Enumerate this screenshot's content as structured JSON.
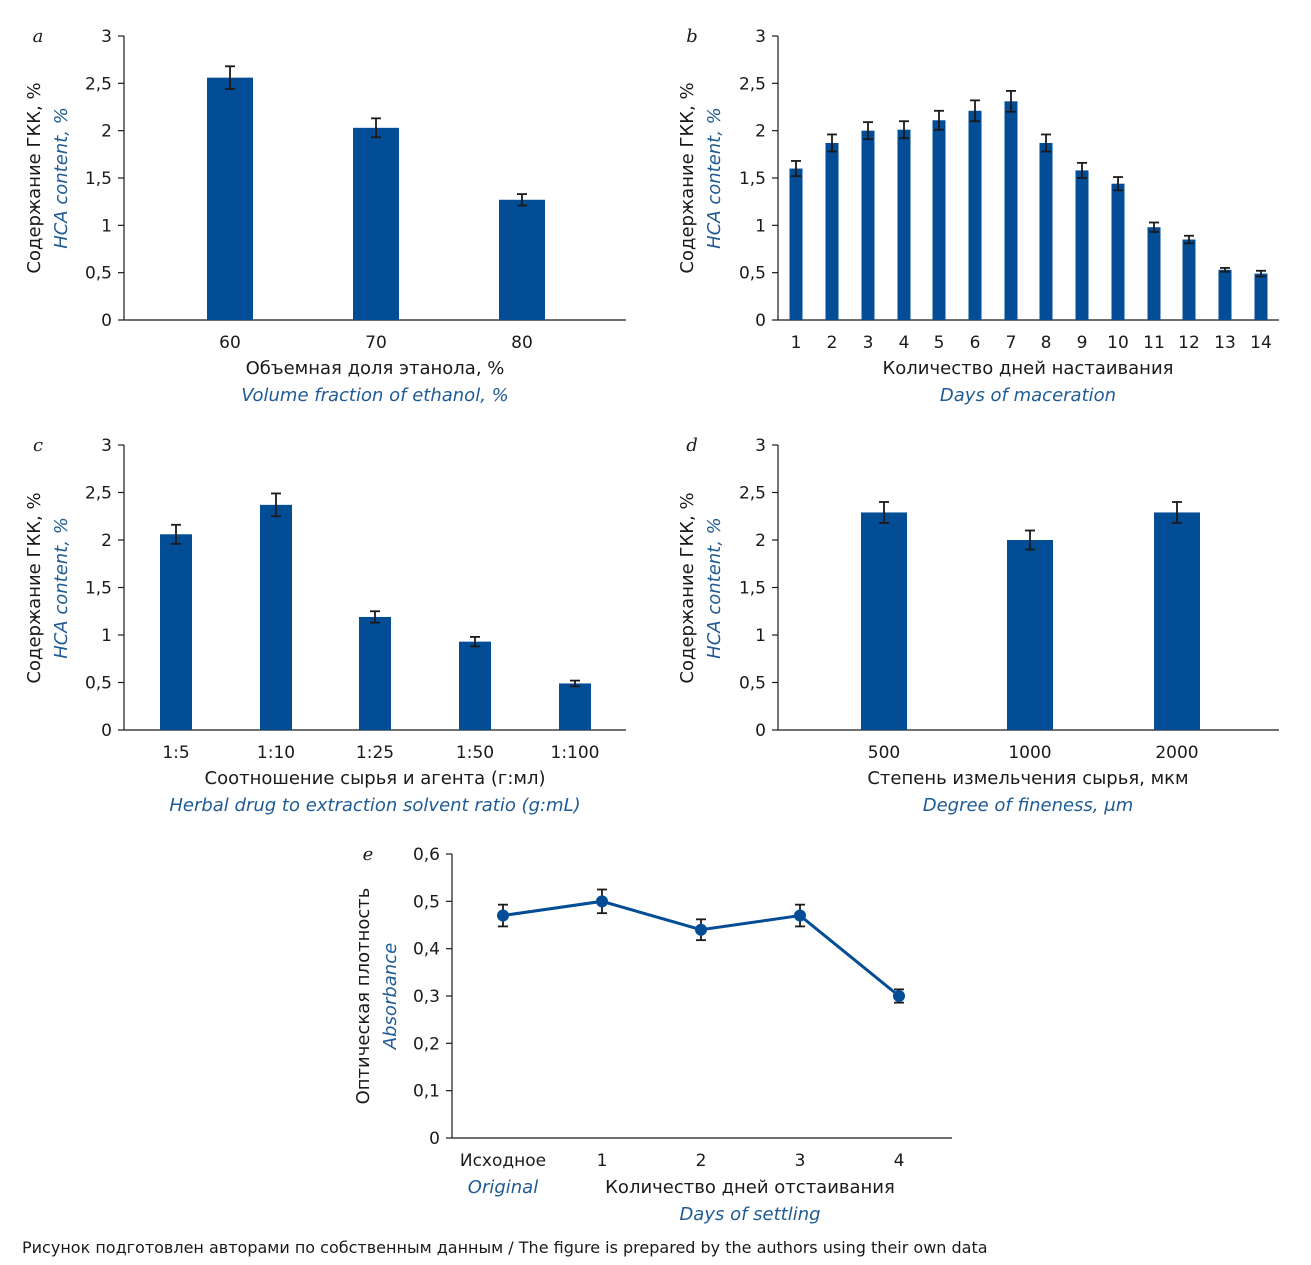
{
  "footnote": "Рисунок подготовлен авторами по собственным данным / The figure is prepared by the authors using their own data",
  "colors": {
    "bar": "#034d97",
    "axis": "#1a1a1a",
    "english_label": "#1f5b94"
  },
  "chart_data": [
    {
      "id": "a",
      "letter": "a",
      "type": "bar",
      "categories": [
        "60",
        "70",
        "80"
      ],
      "values": [
        2.56,
        2.03,
        1.27
      ],
      "errors": [
        0.12,
        0.1,
        0.06
      ],
      "ylim": [
        0,
        3
      ],
      "yticks": [
        0,
        0.5,
        1,
        1.5,
        2,
        2.5,
        3
      ],
      "ytick_labels": [
        "0",
        "0,5",
        "1",
        "1,5",
        "2",
        "2,5",
        "3"
      ],
      "xlabel": "Объемная доля этанола, %",
      "xlabel_en": "Volume fraction of ethanol, %",
      "ylabel": "Содержание ГКК, %",
      "ylabel_en": "HCA content, %",
      "grid": false
    },
    {
      "id": "b",
      "letter": "b",
      "type": "bar",
      "categories": [
        "1",
        "2",
        "3",
        "4",
        "5",
        "6",
        "7",
        "8",
        "9",
        "10",
        "11",
        "12",
        "13",
        "14"
      ],
      "values": [
        1.6,
        1.87,
        2.0,
        2.01,
        2.11,
        2.21,
        2.31,
        1.87,
        1.58,
        1.44,
        0.98,
        0.85,
        0.53,
        0.49
      ],
      "errors": [
        0.08,
        0.09,
        0.09,
        0.09,
        0.1,
        0.11,
        0.11,
        0.09,
        0.08,
        0.07,
        0.05,
        0.04,
        0.02,
        0.03
      ],
      "ylim": [
        0,
        3
      ],
      "yticks": [
        0,
        0.5,
        1,
        1.5,
        2,
        2.5,
        3
      ],
      "ytick_labels": [
        "0",
        "0,5",
        "1",
        "1,5",
        "2",
        "2,5",
        "3"
      ],
      "xlabel": "Количество дней настаивания",
      "xlabel_en": "Days of maceration",
      "ylabel": "Содержание ГКК, %",
      "ylabel_en": "HCA content, %",
      "grid": false
    },
    {
      "id": "c",
      "letter": "c",
      "type": "bar",
      "categories": [
        "1:5",
        "1:10",
        "1:25",
        "1:50",
        "1:100"
      ],
      "values": [
        2.06,
        2.37,
        1.19,
        0.93,
        0.49
      ],
      "errors": [
        0.1,
        0.12,
        0.06,
        0.05,
        0.03
      ],
      "ylim": [
        0,
        3
      ],
      "yticks": [
        0,
        0.5,
        1,
        1.5,
        2,
        2.5,
        3
      ],
      "ytick_labels": [
        "0",
        "0,5",
        "1",
        "1,5",
        "2",
        "2,5",
        "3"
      ],
      "xlabel": "Соотношение сырья и агента (г:мл)",
      "xlabel_en": "Herbal drug to extraction solvent ratio (g:mL)",
      "ylabel": "Содержание ГКК, %",
      "ylabel_en": "HCA content, %",
      "grid": false
    },
    {
      "id": "d",
      "letter": "d",
      "type": "bar",
      "categories": [
        "500",
        "1000",
        "2000"
      ],
      "values": [
        2.29,
        2.0,
        2.29
      ],
      "errors": [
        0.11,
        0.1,
        0.11
      ],
      "ylim": [
        0,
        3
      ],
      "yticks": [
        0,
        0.5,
        1,
        1.5,
        2,
        2.5,
        3
      ],
      "ytick_labels": [
        "0",
        "0,5",
        "1",
        "1,5",
        "2",
        "2,5",
        "3"
      ],
      "xlabel": "Степень измельчения сырья, мкм",
      "xlabel_en": "Degree of fineness, μm",
      "ylabel": "Содержание ГКК, %",
      "ylabel_en": "HCA content, %",
      "grid": false
    },
    {
      "id": "e",
      "letter": "e",
      "type": "line",
      "categories": [
        "Исходное",
        "1",
        "2",
        "3",
        "4"
      ],
      "category0_en": "Original",
      "values": [
        0.47,
        0.5,
        0.44,
        0.47,
        0.3
      ],
      "errors": [
        0.023,
        0.025,
        0.022,
        0.023,
        0.014
      ],
      "ylim": [
        0,
        0.6
      ],
      "yticks": [
        0,
        0.1,
        0.2,
        0.3,
        0.4,
        0.5,
        0.6
      ],
      "ytick_labels": [
        "0",
        "0,1",
        "0,2",
        "0,3",
        "0,4",
        "0,5",
        "0,6"
      ],
      "xlabel": "Количество дней отстаивания",
      "xlabel_en": "Days of settling",
      "ylabel": "Оптическая плотность",
      "ylabel_en": "Absorbance",
      "grid": false
    }
  ]
}
